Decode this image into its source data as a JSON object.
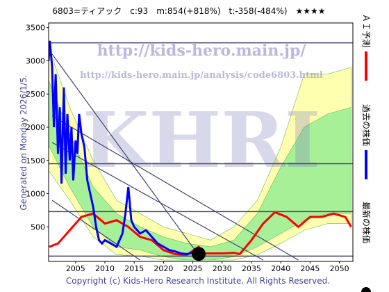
{
  "chart_data": {
    "type": "line",
    "title": "6803=ティアック　c:93　m:854(+818%)　t:-358(-484%)　★★★★",
    "watermark_url": "http://kids-hero.main.jp/",
    "watermark_page": "http://kids-hero.main.jp/analysis/code6803.html",
    "watermark_logo": "KHRI",
    "generated": "Generated on Monday 2026/1/5.",
    "copyright": "Copyright (c) Kids-Hero Research Institute. All Rights Reserved.",
    "xlim": [
      2000.4,
      2052.3
    ],
    "ylim": [
      -20,
      3570
    ],
    "xticks": [
      2005,
      2010,
      2015,
      2020,
      2025,
      2030,
      2035,
      2040,
      2045,
      2050
    ],
    "yticks": [
      500,
      1000,
      1500,
      2000,
      2500,
      3000,
      3500
    ],
    "bands": [
      {
        "color": "#ffffb0",
        "x": [
          2000,
          2004,
          2008,
          2012,
          2016,
          2020,
          2024,
          2028,
          2032,
          2036,
          2040,
          2044,
          2048,
          2052
        ],
        "upper": [
          3300,
          2300,
          1500,
          900,
          700,
          500,
          400,
          300,
          500,
          900,
          1700,
          2800,
          2800,
          2900
        ],
        "lower": [
          1400,
          900,
          350,
          80,
          60,
          0,
          0,
          0,
          0,
          80,
          250,
          450,
          550,
          550
        ]
      },
      {
        "color": "#a8f098",
        "x": [
          2000,
          2004,
          2008,
          2012,
          2016,
          2020,
          2024,
          2028,
          2032,
          2036,
          2040,
          2044,
          2048,
          2052
        ],
        "upper": [
          2800,
          1900,
          1100,
          700,
          500,
          350,
          250,
          200,
          300,
          700,
          1400,
          2000,
          2200,
          2300
        ],
        "lower": [
          1800,
          1100,
          500,
          200,
          150,
          50,
          0,
          0,
          50,
          200,
          400,
          600,
          700,
          700
        ]
      }
    ],
    "hlines": [
      3270,
      1450,
      730,
      60
    ],
    "diagonals": [
      [
        2001,
        3100,
        2026.6,
        0
      ],
      [
        2001,
        2170,
        2043,
        0
      ],
      [
        2001,
        1770,
        2037,
        0
      ],
      [
        2001,
        900,
        2016,
        0
      ]
    ],
    "series": [
      {
        "name": "ＡＩ予測",
        "color": "#ff0000",
        "x": [
          2000.5,
          2002,
          2004,
          2006,
          2008,
          2010,
          2012,
          2014,
          2016,
          2018,
          2020,
          2022,
          2024,
          2026,
          2027,
          2028,
          2030,
          2032,
          2033,
          2035,
          2037,
          2039,
          2041,
          2043,
          2045,
          2047,
          2049,
          2051,
          2052
        ],
        "values": [
          200,
          250,
          450,
          650,
          700,
          550,
          600,
          500,
          350,
          300,
          150,
          90,
          80,
          200,
          100,
          100,
          100,
          110,
          90,
          300,
          550,
          720,
          650,
          500,
          650,
          650,
          700,
          650,
          500
        ]
      },
      {
        "name": "過去の株価",
        "color": "#0000ff",
        "x": [
          2000.4,
          2000.6,
          2001,
          2001.3,
          2001.6,
          2002,
          2002.3,
          2002.6,
          2003,
          2003.3,
          2003.6,
          2004,
          2004.3,
          2004.6,
          2005,
          2005.3,
          2005.6,
          2006,
          2006.5,
          2007,
          2007.5,
          2008,
          2008.5,
          2009,
          2009.5,
          2010,
          2011,
          2012,
          2013,
          2013.5,
          2014,
          2014.5,
          2015,
          2016,
          2017,
          2018,
          2019,
          2020,
          2021,
          2022,
          2023,
          2024,
          2025,
          2026
        ],
        "values": [
          3000,
          3300,
          2900,
          2000,
          2800,
          1600,
          2300,
          1150,
          2600,
          1300,
          2200,
          1500,
          2000,
          1200,
          1800,
          1600,
          2200,
          1900,
          1700,
          1200,
          1000,
          800,
          500,
          300,
          250,
          300,
          250,
          200,
          400,
          700,
          1100,
          600,
          500,
          400,
          450,
          350,
          250,
          200,
          150,
          130,
          100,
          90,
          110,
          93
        ]
      },
      {
        "name": "最新の株価",
        "color": "#000000",
        "x": [
          2026
        ],
        "values": [
          93
        ]
      }
    ]
  }
}
